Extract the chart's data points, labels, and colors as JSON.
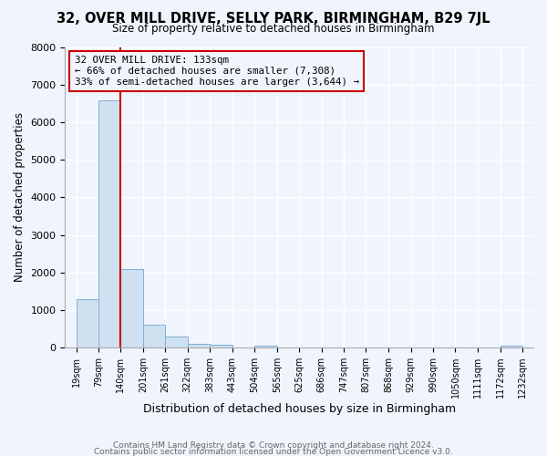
{
  "title": "32, OVER MILL DRIVE, SELLY PARK, BIRMINGHAM, B29 7JL",
  "subtitle": "Size of property relative to detached houses in Birmingham",
  "xlabel": "Distribution of detached houses by size in Birmingham",
  "ylabel": "Number of detached properties",
  "bar_color": "#cfe0f0",
  "bar_edge_color": "#7fb0d8",
  "background_color": "#f0f4fc",
  "plot_bg_color": "#f0f4fc",
  "grid_color": "#ffffff",
  "bin_edges": [
    19,
    79,
    140,
    201,
    261,
    322,
    383,
    443,
    504,
    565,
    625,
    686,
    747,
    807,
    868,
    929,
    990,
    1050,
    1111,
    1172,
    1232
  ],
  "bin_labels": [
    "19sqm",
    "79sqm",
    "140sqm",
    "201sqm",
    "261sqm",
    "322sqm",
    "383sqm",
    "443sqm",
    "504sqm",
    "565sqm",
    "625sqm",
    "686sqm",
    "747sqm",
    "807sqm",
    "868sqm",
    "929sqm",
    "990sqm",
    "1050sqm",
    "1111sqm",
    "1172sqm",
    "1232sqm"
  ],
  "bar_heights": [
    1300,
    6580,
    2100,
    620,
    290,
    110,
    70,
    0,
    60,
    0,
    0,
    0,
    0,
    0,
    0,
    0,
    0,
    0,
    0,
    60,
    0
  ],
  "property_line_x": 140,
  "property_line_color": "#cc0000",
  "annotation_line1": "32 OVER MILL DRIVE: 133sqm",
  "annotation_line2": "← 66% of detached houses are smaller (7,308)",
  "annotation_line3": "33% of semi-detached houses are larger (3,644) →",
  "annotation_box_edge": "#cc0000",
  "ylim": [
    0,
    8000
  ],
  "yticks": [
    0,
    1000,
    2000,
    3000,
    4000,
    5000,
    6000,
    7000,
    8000
  ],
  "footer1": "Contains HM Land Registry data © Crown copyright and database right 2024.",
  "footer2": "Contains public sector information licensed under the Open Government Licence v3.0."
}
